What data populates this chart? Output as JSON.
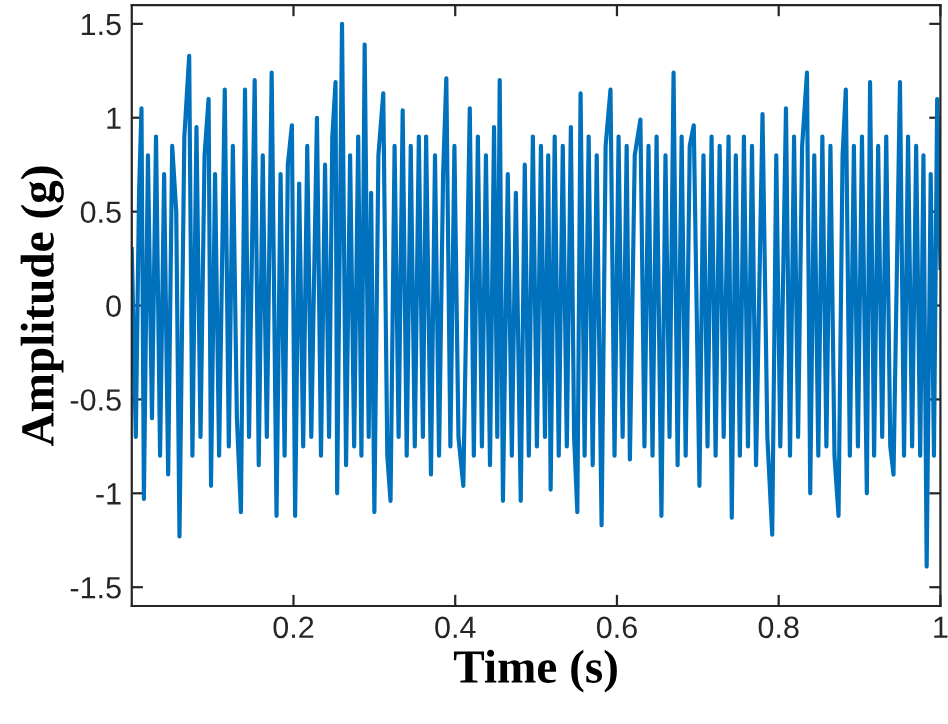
{
  "chart_data": {
    "type": "line",
    "xlabel": "Time (s)",
    "ylabel": "Amplitude (g)",
    "xlim": [
      0,
      1
    ],
    "ylim": [
      -1.6,
      1.6
    ],
    "xticks": [
      0.2,
      0.4,
      0.6,
      0.8,
      1
    ],
    "yticks": [
      -1.5,
      -1,
      -0.5,
      0,
      0.5,
      1,
      1.5
    ],
    "grid": false,
    "legend": false,
    "series": [
      {
        "color": "#0072bd",
        "x": [
          0.0,
          0.005,
          0.009,
          0.012,
          0.015,
          0.02,
          0.025,
          0.03,
          0.035,
          0.04,
          0.045,
          0.05,
          0.055,
          0.059,
          0.065,
          0.071,
          0.075,
          0.08,
          0.085,
          0.09,
          0.095,
          0.098,
          0.103,
          0.108,
          0.115,
          0.12,
          0.125,
          0.13,
          0.135,
          0.14,
          0.145,
          0.152,
          0.157,
          0.162,
          0.167,
          0.173,
          0.179,
          0.184,
          0.189,
          0.193,
          0.198,
          0.202,
          0.207,
          0.212,
          0.217,
          0.222,
          0.229,
          0.234,
          0.239,
          0.244,
          0.248,
          0.252,
          0.254,
          0.26,
          0.265,
          0.27,
          0.275,
          0.28,
          0.284,
          0.288,
          0.293,
          0.296,
          0.3,
          0.305,
          0.311,
          0.316,
          0.32,
          0.325,
          0.33,
          0.335,
          0.34,
          0.345,
          0.35,
          0.355,
          0.36,
          0.364,
          0.37,
          0.375,
          0.38,
          0.385,
          0.389,
          0.394,
          0.399,
          0.404,
          0.41,
          0.418,
          0.423,
          0.428,
          0.433,
          0.438,
          0.443,
          0.448,
          0.452,
          0.455,
          0.459,
          0.465,
          0.47,
          0.475,
          0.481,
          0.486,
          0.491,
          0.496,
          0.501,
          0.506,
          0.511,
          0.515,
          0.518,
          0.523,
          0.528,
          0.533,
          0.538,
          0.543,
          0.547,
          0.551,
          0.555,
          0.56,
          0.565,
          0.57,
          0.575,
          0.581,
          0.586,
          0.592,
          0.597,
          0.602,
          0.607,
          0.612,
          0.616,
          0.622,
          0.629,
          0.634,
          0.639,
          0.644,
          0.649,
          0.655,
          0.66,
          0.665,
          0.67,
          0.675,
          0.68,
          0.685,
          0.69,
          0.695,
          0.702,
          0.707,
          0.712,
          0.717,
          0.722,
          0.727,
          0.732,
          0.738,
          0.742,
          0.747,
          0.752,
          0.757,
          0.762,
          0.767,
          0.772,
          0.78,
          0.786,
          0.792,
          0.797,
          0.802,
          0.809,
          0.814,
          0.819,
          0.824,
          0.829,
          0.835,
          0.839,
          0.844,
          0.849,
          0.854,
          0.859,
          0.864,
          0.869,
          0.874,
          0.879,
          0.883,
          0.888,
          0.893,
          0.898,
          0.903,
          0.909,
          0.913,
          0.918,
          0.923,
          0.928,
          0.933,
          0.938,
          0.942,
          0.95,
          0.955,
          0.96,
          0.965,
          0.97,
          0.975,
          0.979,
          0.983,
          0.988,
          0.992,
          0.996,
          1.0
        ],
        "values": [
          0.3,
          -0.7,
          0.6,
          1.05,
          -1.03,
          0.8,
          -0.6,
          0.9,
          -0.8,
          0.7,
          -0.9,
          0.85,
          0.5,
          -1.23,
          0.9,
          1.33,
          -0.8,
          0.95,
          -0.7,
          0.8,
          1.1,
          -0.96,
          0.7,
          -0.8,
          1.15,
          -0.75,
          0.85,
          -0.6,
          -1.1,
          1.15,
          -0.7,
          1.2,
          -0.85,
          0.8,
          -0.7,
          1.24,
          -1.12,
          0.7,
          -0.8,
          0.75,
          0.96,
          -1.12,
          0.65,
          -0.75,
          0.85,
          -0.7,
          1.0,
          -0.8,
          0.75,
          -0.7,
          0.9,
          1.19,
          -1.0,
          1.5,
          -0.85,
          0.8,
          -0.75,
          0.9,
          -0.8,
          1.39,
          -0.7,
          0.6,
          -1.1,
          0.8,
          1.13,
          -0.8,
          -1.04,
          0.85,
          -0.7,
          1.04,
          -0.8,
          0.85,
          -0.75,
          0.9,
          -0.7,
          0.9,
          -0.9,
          0.8,
          -0.8,
          0.7,
          1.21,
          -0.75,
          0.85,
          -0.7,
          -0.96,
          1.05,
          -0.8,
          0.9,
          -0.75,
          0.8,
          -0.85,
          0.95,
          -0.7,
          1.2,
          -1.04,
          0.7,
          -0.8,
          0.6,
          -1.04,
          0.75,
          -0.8,
          0.9,
          -0.75,
          0.85,
          -0.7,
          0.8,
          -0.98,
          0.9,
          -0.8,
          0.85,
          -0.75,
          0.95,
          -0.7,
          -1.1,
          1.13,
          -0.8,
          0.9,
          -0.85,
          0.8,
          -1.17,
          0.85,
          1.15,
          -0.8,
          0.9,
          -0.7,
          0.85,
          -0.82,
          0.8,
          0.99,
          -0.75,
          0.85,
          -0.8,
          0.9,
          -1.12,
          0.8,
          -0.7,
          1.24,
          -0.85,
          0.9,
          -0.8,
          0.85,
          0.96,
          -0.96,
          0.8,
          -0.75,
          0.9,
          -0.8,
          0.85,
          -0.7,
          0.9,
          -1.13,
          0.8,
          -0.8,
          0.9,
          -0.75,
          0.85,
          -0.85,
          1.02,
          -0.7,
          -1.22,
          0.8,
          -0.75,
          1.05,
          -0.8,
          0.9,
          -0.7,
          0.85,
          1.24,
          -1.0,
          0.8,
          -0.8,
          0.9,
          -0.75,
          0.85,
          -0.8,
          -1.12,
          0.8,
          1.15,
          -0.8,
          0.85,
          -0.75,
          0.9,
          -1.0,
          1.19,
          -0.8,
          0.85,
          -0.7,
          0.9,
          -0.75,
          -0.9,
          1.19,
          -0.8,
          0.9,
          -0.75,
          0.85,
          -0.8,
          0.8,
          -1.39,
          0.7,
          -0.8,
          1.1,
          0.2
        ]
      }
    ]
  }
}
